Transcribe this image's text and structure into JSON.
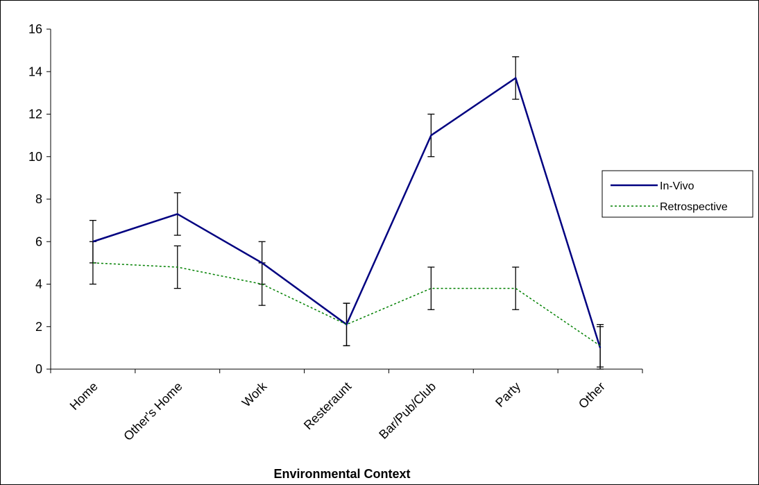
{
  "chart_data": {
    "type": "line",
    "title": "",
    "xlabel": "Environmental Context",
    "ylabel": "",
    "ylim": [
      0,
      16
    ],
    "yticks": [
      0,
      2,
      4,
      6,
      8,
      10,
      12,
      14,
      16
    ],
    "categories": [
      "Home",
      "Other's Home",
      "Work",
      "Resteraunt",
      "Bar/Pub/Club",
      "Party",
      "Other"
    ],
    "series": [
      {
        "name": "In-Vivo",
        "color": "#000080",
        "style": "solid",
        "values": [
          6.0,
          7.3,
          5.0,
          2.1,
          11.0,
          13.7,
          1.0
        ],
        "error": [
          1.0,
          1.0,
          1.0,
          1.0,
          1.0,
          1.0,
          1.0
        ]
      },
      {
        "name": "Retrospective",
        "color": "#008000",
        "style": "dotted",
        "values": [
          5.0,
          4.8,
          4.0,
          2.1,
          3.8,
          3.8,
          1.1
        ],
        "error": [
          1.0,
          1.0,
          1.0,
          1.0,
          1.0,
          1.0,
          1.0
        ]
      }
    ],
    "legend": {
      "position": "right"
    },
    "grid": false
  }
}
